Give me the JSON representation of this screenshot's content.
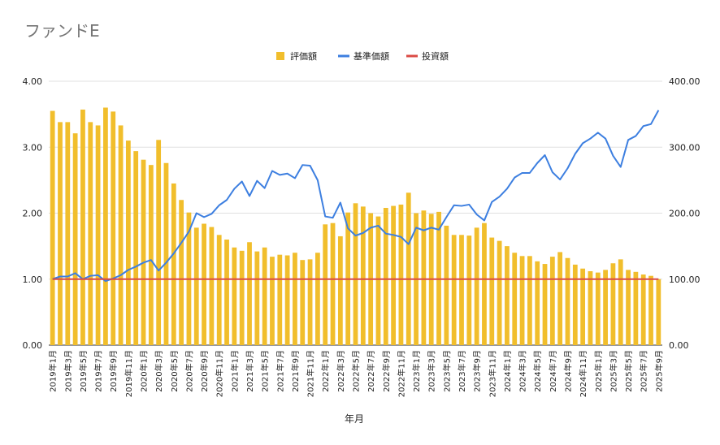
{
  "chart_data": {
    "type": "bar+line",
    "title": "ファンドE",
    "xlabel": "年月",
    "ylabel_left": "",
    "ylabel_right": "",
    "y_left_lim": [
      0,
      4
    ],
    "y_left_ticks": [
      "0.00",
      "1.00",
      "2.00",
      "3.00",
      "4.00"
    ],
    "y_right_lim": [
      0,
      400
    ],
    "y_right_ticks": [
      "0.00",
      "100.00",
      "200.00",
      "300.00",
      "400.00"
    ],
    "grid": true,
    "legend_position": "top-center",
    "colors": {
      "bar": "#F1BE2C",
      "line_price": "#3D7FE0",
      "line_invest": "#DB4B45",
      "grid": "#E0E0E0"
    },
    "categories": [
      "2019年1月",
      "2019年2月",
      "2019年3月",
      "2019年4月",
      "2019年5月",
      "2019年6月",
      "2019年7月",
      "2019年8月",
      "2019年9月",
      "2019年10月",
      "2019年11月",
      "2019年12月",
      "2020年1月",
      "2020年2月",
      "2020年3月",
      "2020年4月",
      "2020年5月",
      "2020年6月",
      "2020年7月",
      "2020年8月",
      "2020年9月",
      "2020年10月",
      "2020年11月",
      "2020年12月",
      "2021年1月",
      "2021年2月",
      "2021年3月",
      "2021年4月",
      "2021年5月",
      "2021年6月",
      "2021年7月",
      "2021年8月",
      "2021年9月",
      "2021年10月",
      "2021年11月",
      "2021年12月",
      "2022年1月",
      "2022年2月",
      "2022年3月",
      "2022年4月",
      "2022年5月",
      "2022年6月",
      "2022年7月",
      "2022年8月",
      "2022年9月",
      "2022年10月",
      "2022年11月",
      "2022年12月",
      "2023年1月",
      "2023年2月",
      "2023年3月",
      "2023年4月",
      "2023年5月",
      "2023年6月",
      "2023年7月",
      "2023年8月",
      "2023年9月",
      "2023年10月",
      "2023年11月",
      "2023年12月",
      "2024年1月",
      "2024年2月",
      "2024年3月",
      "2024年4月",
      "2024年5月",
      "2024年6月",
      "2024年7月",
      "2024年8月",
      "2024年9月",
      "2024年10月",
      "2024年11月",
      "2024年12月",
      "2025年1月",
      "2025年2月",
      "2025年3月",
      "2025年4月",
      "2025年5月",
      "2025年6月",
      "2025年7月",
      "2025年8月",
      "2025年9月"
    ],
    "series": [
      {
        "name": "評価額",
        "type": "bar",
        "axis": "left",
        "values": [
          3.55,
          3.38,
          3.38,
          3.21,
          3.57,
          3.38,
          3.33,
          3.6,
          3.54,
          3.33,
          3.1,
          2.94,
          2.81,
          2.73,
          3.11,
          2.76,
          2.45,
          2.2,
          2.01,
          1.78,
          1.84,
          1.79,
          1.67,
          1.6,
          1.48,
          1.43,
          1.56,
          1.42,
          1.48,
          1.34,
          1.37,
          1.36,
          1.4,
          1.29,
          1.3,
          1.4,
          1.83,
          1.85,
          1.65,
          2.01,
          2.15,
          2.1,
          2.0,
          1.95,
          2.08,
          2.11,
          2.13,
          2.31,
          2.0,
          2.04,
          1.99,
          2.02,
          1.81,
          1.67,
          1.67,
          1.66,
          1.78,
          1.85,
          1.63,
          1.58,
          1.5,
          1.4,
          1.35,
          1.35,
          1.27,
          1.23,
          1.34,
          1.41,
          1.32,
          1.22,
          1.16,
          1.12,
          1.1,
          1.14,
          1.24,
          1.3,
          1.14,
          1.11,
          1.07,
          1.05,
          1.0
        ]
      },
      {
        "name": "基準価額",
        "type": "line",
        "axis": "right",
        "values": [
          100,
          104,
          104,
          109,
          100,
          105,
          106,
          97,
          101,
          106,
          114,
          119,
          125,
          129,
          113,
          125,
          139,
          155,
          172,
          200,
          194,
          199,
          212,
          220,
          237,
          248,
          226,
          249,
          238,
          264,
          258,
          260,
          253,
          273,
          272,
          250,
          195,
          193,
          216,
          177,
          166,
          170,
          178,
          181,
          169,
          167,
          164,
          153,
          178,
          174,
          178,
          175,
          194,
          212,
          211,
          213,
          198,
          189,
          217,
          225,
          237,
          254,
          261,
          261,
          276,
          288,
          262,
          251,
          268,
          290,
          306,
          313,
          322,
          313,
          287,
          270,
          311,
          317,
          332,
          335,
          356
        ]
      },
      {
        "name": "投資額",
        "type": "line",
        "axis": "right",
        "values": [
          100,
          100,
          100,
          100,
          100,
          100,
          100,
          100,
          100,
          100,
          100,
          100,
          100,
          100,
          100,
          100,
          100,
          100,
          100,
          100,
          100,
          100,
          100,
          100,
          100,
          100,
          100,
          100,
          100,
          100,
          100,
          100,
          100,
          100,
          100,
          100,
          100,
          100,
          100,
          100,
          100,
          100,
          100,
          100,
          100,
          100,
          100,
          100,
          100,
          100,
          100,
          100,
          100,
          100,
          100,
          100,
          100,
          100,
          100,
          100,
          100,
          100,
          100,
          100,
          100,
          100,
          100,
          100,
          100,
          100,
          100,
          100,
          100,
          100,
          100,
          100,
          100,
          100,
          100,
          100,
          100
        ]
      }
    ],
    "x_tick_labels": [
      "2019年1月",
      "2019年3月",
      "2019年5月",
      "2019年7月",
      "2019年9月",
      "2019年11月",
      "2020年1月",
      "2020年3月",
      "2020年5月",
      "2020年7月",
      "2020年9月",
      "2020年11月",
      "2021年1月",
      "2021年3月",
      "2021年5月",
      "2021年7月",
      "2021年9月",
      "2021年11月",
      "2022年1月",
      "2022年3月",
      "2022年5月",
      "2022年7月",
      "2022年9月",
      "2022年11月",
      "2023年1月",
      "2023年3月",
      "2023年5月",
      "2023年7月",
      "2023年9月",
      "2023年11月",
      "2024年1月",
      "2024年3月",
      "2024年5月",
      "2024年7月",
      "2024年9月",
      "2024年11月",
      "2025年1月",
      "2025年3月",
      "2025年5月",
      "2025年7月",
      "2025年9月"
    ]
  }
}
